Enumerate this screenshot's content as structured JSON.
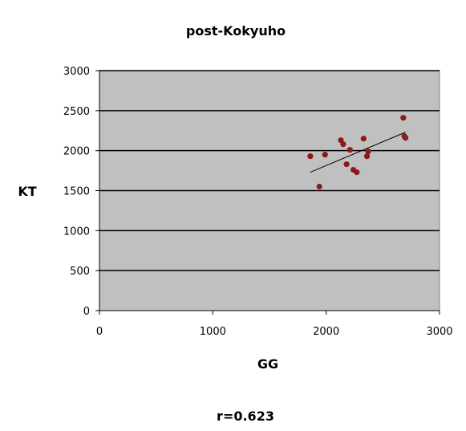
{
  "chart_data": {
    "type": "scatter",
    "title": "post-Kokyuho",
    "xlabel": "GG",
    "ylabel": "KT",
    "xlim": [
      0,
      3000
    ],
    "ylim": [
      0,
      3000
    ],
    "xticks": [
      "0",
      "1000",
      "2000",
      "3000"
    ],
    "yticks": [
      "0",
      "500",
      "1000",
      "1500",
      "2000",
      "2500",
      "3000"
    ],
    "grid": "horizontal",
    "legend": "none",
    "annotation": "r=0.623",
    "plot_background": "#c0c0c0",
    "marker_color": "#8b1a1a",
    "points": [
      {
        "x": 1860,
        "y": 1930
      },
      {
        "x": 1940,
        "y": 1550
      },
      {
        "x": 1990,
        "y": 1950
      },
      {
        "x": 2130,
        "y": 2130
      },
      {
        "x": 2150,
        "y": 2080
      },
      {
        "x": 2180,
        "y": 1830
      },
      {
        "x": 2210,
        "y": 2010
      },
      {
        "x": 2240,
        "y": 1760
      },
      {
        "x": 2270,
        "y": 1730
      },
      {
        "x": 2330,
        "y": 2150
      },
      {
        "x": 2360,
        "y": 1930
      },
      {
        "x": 2370,
        "y": 1990
      },
      {
        "x": 2680,
        "y": 2410
      },
      {
        "x": 2690,
        "y": 2180
      },
      {
        "x": 2700,
        "y": 2160
      }
    ],
    "trendline": {
      "x": [
        1860,
        2700
      ],
      "y": [
        1730,
        2230
      ]
    }
  }
}
